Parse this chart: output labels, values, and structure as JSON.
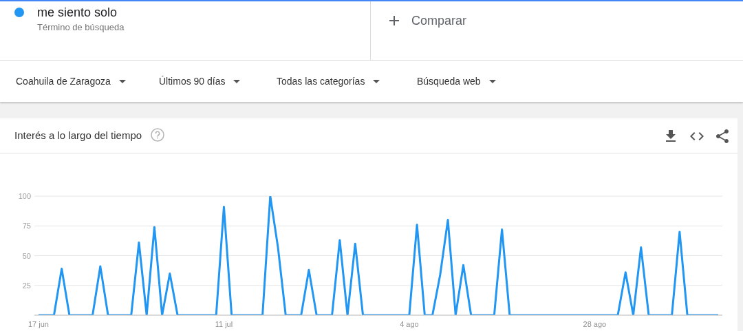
{
  "chart_data": {
    "type": "line",
    "title": "Interés a lo largo del tiempo",
    "annotations": [
      "Término de búsqueda",
      "Comparar",
      "Coahuila de Zaragoza",
      "Últimos 90 días",
      "Todas las categorías",
      "Búsqueda web"
    ],
    "categories": [
      "17 jun",
      null,
      null,
      null,
      null,
      null,
      null,
      null,
      null,
      null,
      null,
      null,
      null,
      null,
      null,
      null,
      null,
      null,
      null,
      null,
      null,
      null,
      null,
      null,
      "11 jul",
      null,
      null,
      null,
      null,
      null,
      null,
      null,
      null,
      null,
      null,
      null,
      null,
      null,
      null,
      null,
      null,
      null,
      null,
      null,
      null,
      null,
      null,
      null,
      "4 ago",
      null,
      null,
      null,
      null,
      null,
      null,
      null,
      null,
      null,
      null,
      null,
      null,
      null,
      null,
      null,
      null,
      null,
      null,
      null,
      null,
      null,
      null,
      null,
      "28 ago",
      null,
      null,
      null,
      null,
      null,
      null,
      null,
      null,
      null,
      null,
      null,
      null,
      null,
      null,
      null,
      null
    ],
    "series": [
      {
        "name": "me siento solo",
        "color": "#2196f3",
        "values": [
          0,
          0,
          0,
          39,
          0,
          0,
          0,
          0,
          41,
          0,
          0,
          0,
          0,
          61,
          0,
          74,
          0,
          35,
          0,
          0,
          0,
          0,
          0,
          0,
          91,
          0,
          0,
          0,
          0,
          0,
          100,
          57,
          0,
          0,
          0,
          38,
          0,
          0,
          0,
          63,
          0,
          60,
          0,
          0,
          0,
          0,
          0,
          0,
          0,
          76,
          0,
          0,
          34,
          80,
          0,
          42,
          0,
          0,
          0,
          0,
          72,
          0,
          0,
          0,
          0,
          0,
          0,
          0,
          0,
          0,
          0,
          0,
          0,
          0,
          0,
          0,
          36,
          0,
          57,
          0,
          0,
          0,
          0,
          70,
          0,
          0,
          0,
          0,
          0
        ]
      }
    ],
    "ylim": [
      0,
      100
    ],
    "yticks": [
      {
        "value": 0,
        "label": null
      },
      25,
      50,
      75,
      100
    ],
    "grid": "y",
    "legend": "top left"
  }
}
